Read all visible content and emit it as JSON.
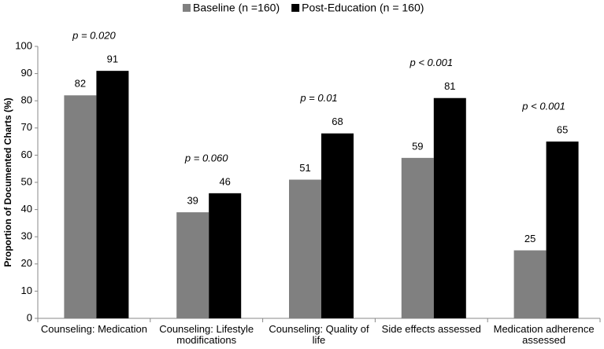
{
  "chart_data": {
    "type": "bar",
    "y_label": "Proportion of Documented Charts (%)",
    "categories": [
      "Counseling: Medication",
      "Counseling: Lifestyle modifications",
      "Counseling: Quality of life",
      "Side effects assessed",
      "Medication adherence assessed"
    ],
    "series": [
      {
        "name": "Baseline (n =160)",
        "color": "#808080",
        "values": [
          82,
          39,
          51,
          59,
          25
        ]
      },
      {
        "name": "Post-Education (n = 160)",
        "color": "#000000",
        "values": [
          91,
          46,
          68,
          81,
          65
        ]
      }
    ],
    "annotations": [
      "p = 0.020",
      "p = 0.060",
      "p = 0.01",
      "p  < 0.001",
      "p < 0.001"
    ],
    "ylim": [
      0,
      100
    ],
    "yticks": [
      0,
      10,
      20,
      30,
      40,
      50,
      60,
      70,
      80,
      90,
      100
    ],
    "legend": "top"
  }
}
